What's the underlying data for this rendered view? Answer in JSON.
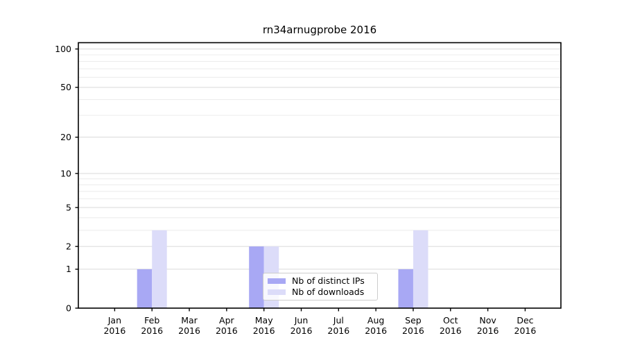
{
  "chart_data": {
    "type": "bar",
    "title": "rn34arnugprobe 2016",
    "categories": [
      {
        "month": "Jan",
        "year": "2016"
      },
      {
        "month": "Feb",
        "year": "2016"
      },
      {
        "month": "Mar",
        "year": "2016"
      },
      {
        "month": "Apr",
        "year": "2016"
      },
      {
        "month": "May",
        "year": "2016"
      },
      {
        "month": "Jun",
        "year": "2016"
      },
      {
        "month": "Jul",
        "year": "2016"
      },
      {
        "month": "Aug",
        "year": "2016"
      },
      {
        "month": "Sep",
        "year": "2016"
      },
      {
        "month": "Oct",
        "year": "2016"
      },
      {
        "month": "Nov",
        "year": "2016"
      },
      {
        "month": "Dec",
        "year": "2016"
      }
    ],
    "series": [
      {
        "name": "Nb of distinct IPs",
        "color": "#a8a8f4",
        "values": [
          0,
          1,
          0,
          0,
          2,
          0,
          0,
          0,
          1,
          0,
          0,
          0
        ]
      },
      {
        "name": "Nb of downloads",
        "color": "#dcdcf9",
        "values": [
          0,
          3,
          0,
          0,
          2,
          0,
          0,
          0,
          3,
          0,
          0,
          0
        ]
      }
    ],
    "y_axis": {
      "ticks": [
        0,
        1,
        2,
        5,
        10,
        20,
        50,
        100
      ],
      "minor_ticks": [
        3,
        4,
        6,
        7,
        8,
        9,
        30,
        40,
        60,
        70,
        80,
        90
      ],
      "scale": "log10(1+y)",
      "max": 112
    },
    "xlabel": "",
    "ylabel": "",
    "grid": "horizontal",
    "legend_position": "inside-bottom-center"
  },
  "colors": {
    "major_grid": "#d9d9d9",
    "minor_grid": "#ececec",
    "axis": "#000000",
    "legend_border": "#cccccc"
  }
}
